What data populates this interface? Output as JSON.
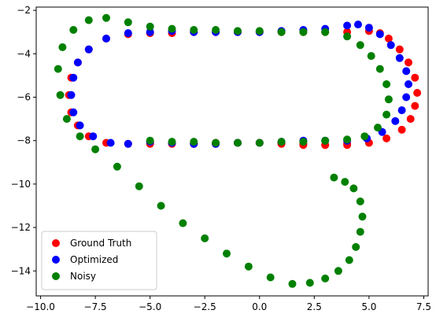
{
  "chart_data": {
    "type": "scatter",
    "title": "",
    "xlabel": "",
    "ylabel": "",
    "xlim": [
      -10.2,
      7.7
    ],
    "ylim": [
      -15.15,
      -1.85
    ],
    "xticks": [
      -10.0,
      -7.5,
      -5.0,
      -2.5,
      0.0,
      2.5,
      5.0,
      7.5
    ],
    "yticks": [
      -2,
      -4,
      -6,
      -8,
      -10,
      -12,
      -14
    ],
    "xtick_labels": [
      "−10.0",
      "−7.5",
      "−5.0",
      "−2.5",
      "0.0",
      "2.5",
      "5.0",
      "7.5"
    ],
    "ytick_labels": [
      "−2",
      "−4",
      "−6",
      "−8",
      "−10",
      "−12",
      "−14"
    ],
    "grid": false,
    "legend_position": "lower-left",
    "series": [
      {
        "name": "Ground Truth",
        "color": "#ff0000",
        "x": [
          -5.0,
          -4.0,
          -3.0,
          -2.0,
          -1.0,
          0.0,
          1.0,
          2.0,
          3.0,
          4.0,
          5.0,
          5.8,
          6.5,
          6.9,
          7.1,
          7.2,
          7.1,
          6.8,
          6.4,
          5.9,
          5.5,
          5.0,
          4.0,
          3.0,
          2.0,
          1.0,
          0.0,
          -1.0,
          -2.0,
          -3.0,
          -4.0,
          -5.0,
          -6.0,
          -7.0,
          -7.8,
          -8.3,
          -8.6,
          -8.7,
          -8.6,
          -8.3,
          -7.8,
          -7.0,
          -6.0,
          -5.0,
          -4.0,
          -3.0,
          -2.0,
          -1.0,
          0.0,
          1.0,
          2.0,
          3.0,
          4.0
        ],
        "y": [
          -8.05,
          -8.1,
          -8.15,
          -8.15,
          -8.1,
          -8.1,
          -8.15,
          -8.2,
          -8.2,
          -8.15,
          -8.1,
          -7.9,
          -7.5,
          -7.0,
          -6.4,
          -5.8,
          -5.1,
          -4.4,
          -3.8,
          -3.3,
          -3.05,
          -2.95,
          -3.0,
          -3.0,
          -3.0,
          -3.0,
          -3.0,
          -3.0,
          -3.0,
          -3.0,
          -3.05,
          -3.05,
          -3.1,
          -3.3,
          -3.8,
          -4.4,
          -5.1,
          -5.9,
          -6.7,
          -7.3,
          -7.8,
          -8.1,
          -8.15,
          -8.15,
          -8.15,
          -8.15,
          -8.1,
          -8.1,
          -8.1,
          -8.1,
          -8.15,
          -8.2,
          -8.2
        ]
      },
      {
        "name": "Optimized",
        "color": "#0000ff",
        "x": [
          -5.0,
          -4.0,
          -3.0,
          -2.0,
          -1.0,
          0.0,
          1.0,
          2.0,
          3.0,
          4.0,
          4.9,
          5.6,
          6.2,
          6.5,
          6.7,
          6.8,
          6.7,
          6.4,
          6.0,
          5.5,
          5.0,
          4.5,
          4.0,
          3.0,
          2.0,
          1.0,
          0.0,
          -1.0,
          -2.0,
          -3.0,
          -4.0,
          -5.0,
          -6.0,
          -7.0,
          -7.8,
          -8.3,
          -8.5,
          -8.6,
          -8.5,
          -8.2,
          -7.6,
          -6.8,
          -6.0
        ],
        "y": [
          -8.05,
          -8.1,
          -8.15,
          -8.15,
          -8.1,
          -8.1,
          -8.05,
          -8.0,
          -8.0,
          -8.0,
          -7.9,
          -7.6,
          -7.1,
          -6.6,
          -6.0,
          -5.4,
          -4.8,
          -4.2,
          -3.6,
          -3.1,
          -2.8,
          -2.65,
          -2.7,
          -2.85,
          -2.9,
          -2.95,
          -3.0,
          -3.0,
          -3.0,
          -3.0,
          -2.95,
          -3.0,
          -3.05,
          -3.3,
          -3.8,
          -4.4,
          -5.1,
          -5.9,
          -6.7,
          -7.3,
          -7.8,
          -8.1,
          -8.15
        ]
      },
      {
        "name": "Noisy",
        "color": "#008000",
        "x": [
          -5.0,
          -4.0,
          -3.0,
          -2.0,
          -1.0,
          0.0,
          1.0,
          2.0,
          3.0,
          4.0,
          4.8,
          5.4,
          5.8,
          5.9,
          5.8,
          5.5,
          5.1,
          4.6,
          4.0,
          3.0,
          2.0,
          1.0,
          0.0,
          -1.0,
          -2.0,
          -3.0,
          -4.0,
          -5.0,
          -6.0,
          -7.0,
          -7.8,
          -8.5,
          -9.0,
          -9.2,
          -9.1,
          -8.8,
          -8.2,
          -7.5,
          -6.5,
          -5.5,
          -4.5,
          -3.5,
          -2.5,
          -1.5,
          -0.5,
          0.5,
          1.5,
          2.3,
          3.0,
          3.6,
          4.1,
          4.4,
          4.6,
          4.7,
          4.6,
          4.3,
          3.9,
          3.4
        ],
        "y": [
          -8.0,
          -8.05,
          -8.05,
          -8.1,
          -8.1,
          -8.1,
          -8.05,
          -8.05,
          -8.0,
          -7.95,
          -7.8,
          -7.4,
          -6.8,
          -6.1,
          -5.4,
          -4.7,
          -4.1,
          -3.6,
          -3.2,
          -3.0,
          -3.0,
          -3.0,
          -2.95,
          -2.95,
          -2.9,
          -2.9,
          -2.85,
          -2.75,
          -2.55,
          -2.35,
          -2.45,
          -2.9,
          -3.7,
          -4.7,
          -5.9,
          -7.0,
          -7.8,
          -8.4,
          -9.2,
          -10.1,
          -11.0,
          -11.8,
          -12.5,
          -13.2,
          -13.8,
          -14.3,
          -14.6,
          -14.55,
          -14.35,
          -14.0,
          -13.5,
          -12.9,
          -12.2,
          -11.5,
          -10.8,
          -10.2,
          -9.9,
          -9.7
        ]
      }
    ]
  }
}
